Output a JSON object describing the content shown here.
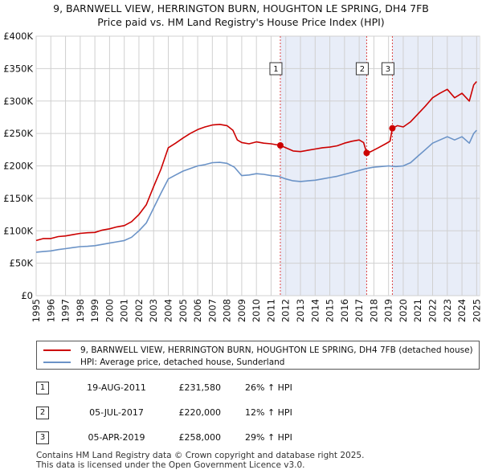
{
  "chart_data": {
    "type": "line",
    "title": "9, BARNWELL VIEW, HERRINGTON BURN, HOUGHTON LE SPRING, DH4 7FB",
    "subtitle": "Price paid vs. HM Land Registry's House Price Index (HPI)",
    "xlim": [
      1995.0,
      2025.2
    ],
    "ylim": [
      0,
      400000
    ],
    "y_ticks": [
      {
        "value": 0,
        "label": "£0"
      },
      {
        "value": 50000,
        "label": "£50K"
      },
      {
        "value": 100000,
        "label": "£100K"
      },
      {
        "value": 150000,
        "label": "£150K"
      },
      {
        "value": 200000,
        "label": "£200K"
      },
      {
        "value": 250000,
        "label": "£250K"
      },
      {
        "value": 300000,
        "label": "£300K"
      },
      {
        "value": 350000,
        "label": "£350K"
      },
      {
        "value": 400000,
        "label": "£400K"
      }
    ],
    "x_ticks": [
      "1995",
      "1996",
      "1997",
      "1998",
      "1999",
      "2000",
      "2001",
      "2002",
      "2003",
      "2004",
      "2005",
      "2006",
      "2007",
      "2008",
      "2009",
      "2010",
      "2011",
      "2012",
      "2013",
      "2014",
      "2015",
      "2016",
      "2017",
      "2018",
      "2019",
      "2020",
      "2021",
      "2022",
      "2023",
      "2024",
      "2025"
    ],
    "grid": true,
    "shaded_regions": [
      {
        "from": 2011.63,
        "to": 2017.51
      },
      {
        "from": 2019.26,
        "to": 2025.2
      }
    ],
    "series": [
      {
        "name": "9, BARNWELL VIEW, HERRINGTON BURN, HOUGHTON LE SPRING, DH4 7FB (detached house)",
        "color": "#cc0000",
        "points": [
          [
            1995.0,
            85000
          ],
          [
            1995.5,
            88000
          ],
          [
            1996.0,
            88000
          ],
          [
            1996.5,
            91000
          ],
          [
            1997.0,
            92000
          ],
          [
            1997.5,
            94000
          ],
          [
            1998.0,
            96000
          ],
          [
            1998.5,
            97000
          ],
          [
            1999.0,
            97500
          ],
          [
            1999.5,
            101000
          ],
          [
            2000.0,
            103000
          ],
          [
            2000.5,
            106000
          ],
          [
            2001.0,
            108000
          ],
          [
            2001.5,
            114000
          ],
          [
            2002.0,
            125000
          ],
          [
            2002.5,
            140000
          ],
          [
            2003.0,
            168000
          ],
          [
            2003.5,
            195000
          ],
          [
            2004.0,
            228000
          ],
          [
            2004.5,
            235000
          ],
          [
            2005.0,
            243000
          ],
          [
            2005.5,
            250000
          ],
          [
            2006.0,
            256000
          ],
          [
            2006.5,
            260000
          ],
          [
            2007.0,
            263000
          ],
          [
            2007.5,
            264000
          ],
          [
            2008.0,
            262000
          ],
          [
            2008.4,
            255000
          ],
          [
            2008.7,
            240000
          ],
          [
            2009.0,
            236000
          ],
          [
            2009.5,
            234000
          ],
          [
            2010.0,
            237000
          ],
          [
            2010.5,
            235000
          ],
          [
            2011.0,
            234000
          ],
          [
            2011.63,
            231580
          ],
          [
            2012.0,
            228000
          ],
          [
            2012.5,
            223000
          ],
          [
            2013.0,
            222000
          ],
          [
            2013.5,
            224000
          ],
          [
            2014.0,
            226000
          ],
          [
            2014.5,
            228000
          ],
          [
            2015.0,
            229000
          ],
          [
            2015.5,
            231000
          ],
          [
            2016.0,
            235000
          ],
          [
            2016.5,
            238000
          ],
          [
            2017.0,
            240000
          ],
          [
            2017.3,
            236000
          ],
          [
            2017.51,
            220000
          ],
          [
            2017.8,
            222000
          ],
          [
            2018.3,
            228000
          ],
          [
            2018.8,
            234000
          ],
          [
            2019.1,
            238000
          ],
          [
            2019.26,
            258000
          ],
          [
            2019.6,
            262000
          ],
          [
            2020.0,
            260000
          ],
          [
            2020.5,
            268000
          ],
          [
            2021.0,
            280000
          ],
          [
            2021.5,
            292000
          ],
          [
            2022.0,
            305000
          ],
          [
            2022.5,
            312000
          ],
          [
            2023.0,
            318000
          ],
          [
            2023.5,
            305000
          ],
          [
            2024.0,
            312000
          ],
          [
            2024.5,
            300000
          ],
          [
            2024.8,
            325000
          ],
          [
            2025.0,
            330000
          ]
        ]
      },
      {
        "name": "HPI: Average price, detached house, Sunderland",
        "color": "#6b93c7",
        "points": [
          [
            1995.0,
            67000
          ],
          [
            1995.5,
            68000
          ],
          [
            1996.0,
            69000
          ],
          [
            1996.5,
            71000
          ],
          [
            1997.0,
            72500
          ],
          [
            1997.5,
            74000
          ],
          [
            1998.0,
            75500
          ],
          [
            1998.5,
            76000
          ],
          [
            1999.0,
            77000
          ],
          [
            1999.5,
            79000
          ],
          [
            2000.0,
            81000
          ],
          [
            2000.5,
            83000
          ],
          [
            2001.0,
            85000
          ],
          [
            2001.5,
            90000
          ],
          [
            2002.0,
            100000
          ],
          [
            2002.5,
            112000
          ],
          [
            2003.0,
            135000
          ],
          [
            2003.5,
            158000
          ],
          [
            2004.0,
            180000
          ],
          [
            2004.5,
            186000
          ],
          [
            2005.0,
            192000
          ],
          [
            2005.5,
            196000
          ],
          [
            2006.0,
            200000
          ],
          [
            2006.5,
            202000
          ],
          [
            2007.0,
            205000
          ],
          [
            2007.5,
            205500
          ],
          [
            2008.0,
            204000
          ],
          [
            2008.5,
            198000
          ],
          [
            2009.0,
            185000
          ],
          [
            2009.5,
            186000
          ],
          [
            2010.0,
            188000
          ],
          [
            2010.5,
            187000
          ],
          [
            2011.0,
            185000
          ],
          [
            2011.5,
            184000
          ],
          [
            2012.0,
            180000
          ],
          [
            2012.5,
            177000
          ],
          [
            2013.0,
            176000
          ],
          [
            2013.5,
            177000
          ],
          [
            2014.0,
            178000
          ],
          [
            2014.5,
            180000
          ],
          [
            2015.0,
            182000
          ],
          [
            2015.5,
            184000
          ],
          [
            2016.0,
            187000
          ],
          [
            2016.5,
            190000
          ],
          [
            2017.0,
            193000
          ],
          [
            2017.5,
            196000
          ],
          [
            2018.0,
            198000
          ],
          [
            2018.5,
            199000
          ],
          [
            2019.0,
            200000
          ],
          [
            2019.5,
            199000
          ],
          [
            2020.0,
            200000
          ],
          [
            2020.5,
            205000
          ],
          [
            2021.0,
            215000
          ],
          [
            2021.5,
            225000
          ],
          [
            2022.0,
            235000
          ],
          [
            2022.5,
            240000
          ],
          [
            2023.0,
            245000
          ],
          [
            2023.5,
            240000
          ],
          [
            2024.0,
            245000
          ],
          [
            2024.5,
            235000
          ],
          [
            2024.8,
            250000
          ],
          [
            2025.0,
            255000
          ]
        ]
      }
    ],
    "markers": [
      {
        "label": "1",
        "x": 2011.63,
        "y": 231580
      },
      {
        "label": "2",
        "x": 2017.51,
        "y": 220000
      },
      {
        "label": "3",
        "x": 2019.26,
        "y": 258000
      }
    ],
    "legend_position": "below"
  },
  "legend": {
    "property_label": "9, BARNWELL VIEW, HERRINGTON BURN, HOUGHTON LE SPRING, DH4 7FB (detached house)",
    "hpi_label": "HPI: Average price, detached house, Sunderland",
    "property_color": "#cc0000",
    "hpi_color": "#6b93c7"
  },
  "annotations": [
    {
      "num": "1",
      "date": "19-AUG-2011",
      "price": "£231,580",
      "hpi": "26% ↑ HPI"
    },
    {
      "num": "2",
      "date": "05-JUL-2017",
      "price": "£220,000",
      "hpi": "12% ↑ HPI"
    },
    {
      "num": "3",
      "date": "05-APR-2019",
      "price": "£258,000",
      "hpi": "29% ↑ HPI"
    }
  ],
  "footer": {
    "line1": "Contains HM Land Registry data © Crown copyright and database right 2025.",
    "line2": "This data is licensed under the Open Government Licence v3.0."
  }
}
